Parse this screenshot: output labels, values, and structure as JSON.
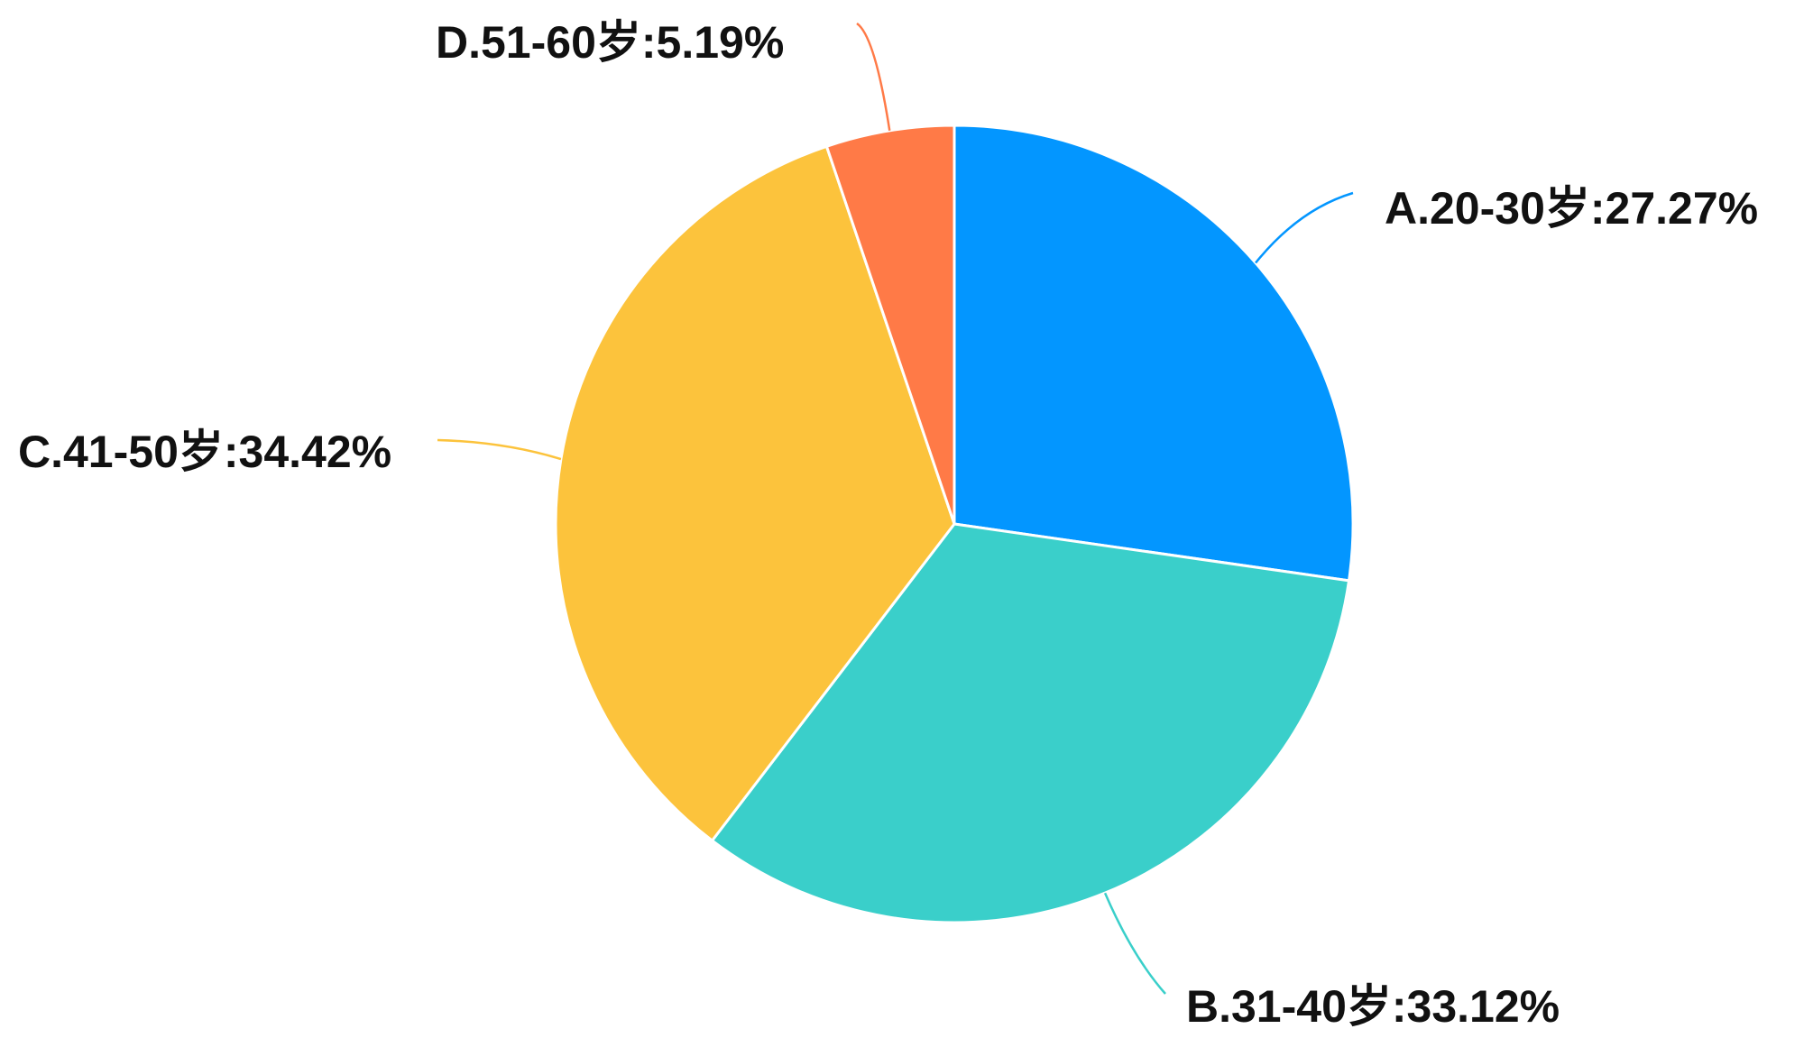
{
  "chart_data": {
    "type": "pie",
    "categories": [
      "A.20-30岁",
      "B.31-40岁",
      "C.41-50岁",
      "D.51-60岁"
    ],
    "values": [
      27.27,
      33.12,
      34.42,
      5.19
    ],
    "labels": [
      "A.20-30岁:27.27%",
      "B.31-40岁:33.12%",
      "C.41-50岁:34.42%",
      "D.51-60岁:5.19%"
    ],
    "colors": [
      "#0396FF",
      "#3ACFCA",
      "#FCC33C",
      "#FF7A47"
    ],
    "start": "12-o'clock",
    "direction": "clockwise",
    "legend": "none",
    "title": ""
  }
}
